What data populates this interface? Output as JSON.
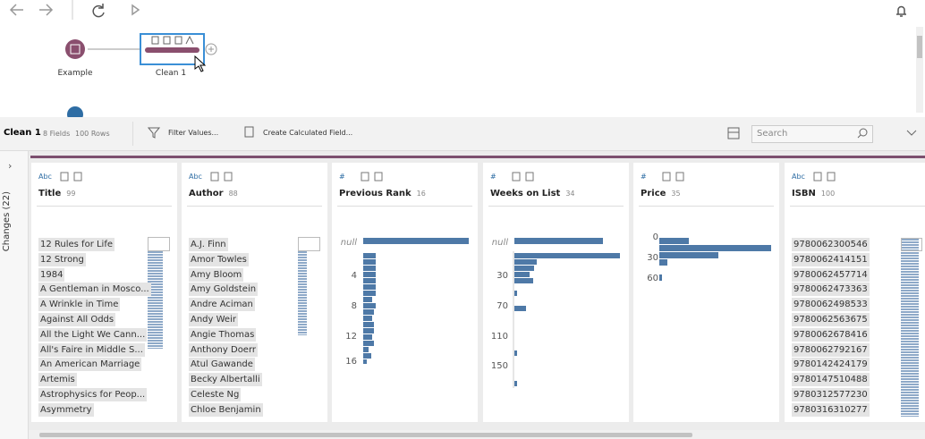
{
  "flow": {
    "nodes": [
      {
        "label": "Example"
      },
      {
        "label": "Clean 1"
      }
    ]
  },
  "step": {
    "name": "Clean 1",
    "fields": "8 Fields",
    "rows": "100 Rows",
    "actions": [
      "Filter Values...",
      "Create Calculated Field..."
    ],
    "search_placeholder": "Search"
  },
  "changes": "Changes (22)",
  "profile": [
    {
      "type": "Abc",
      "name": "Title",
      "count": 99,
      "values": [
        "12 Rules for Life",
        "12 Strong",
        "1984",
        "A Gentleman in Mosco...",
        "A Wrinkle in Time",
        "Against All Odds",
        "All the Light We Cann...",
        "All's Faire in Middle S...",
        "An American Marriage",
        "Artemis",
        "Astrophysics for Peop...",
        "Asymmetry"
      ]
    },
    {
      "type": "Abc",
      "name": "Author",
      "count": 88,
      "values": [
        "A.J. Finn",
        "Amor Towles",
        "Amy Bloom",
        "Amy Goldstein",
        "Andre Aciman",
        "Andy Weir",
        "Angie Thomas",
        "Anthony Doerr",
        "Atul Gawande",
        "Becky Albertalli",
        "Celeste Ng",
        "Chloe Benjamin"
      ]
    },
    {
      "type": "#",
      "name": "Previous Rank",
      "count": 16,
      "axis": [
        "null",
        4,
        8,
        12,
        16
      ]
    },
    {
      "type": "#",
      "name": "Weeks on List",
      "count": 34,
      "axis": [
        "null",
        30,
        70,
        110,
        150
      ]
    },
    {
      "type": "#",
      "name": "Price",
      "count": 35,
      "axis": [
        0,
        30,
        60
      ]
    },
    {
      "type": "Abc",
      "name": "ISBN",
      "count": 100,
      "values": [
        "9780062300546",
        "9780062414151",
        "9780062457714",
        "9780062473363",
        "9780062498533",
        "9780062563675",
        "9780062678416",
        "9780062792167",
        "9780142424179",
        "9780147510488",
        "9780312577230",
        "9780316310277"
      ]
    }
  ]
}
